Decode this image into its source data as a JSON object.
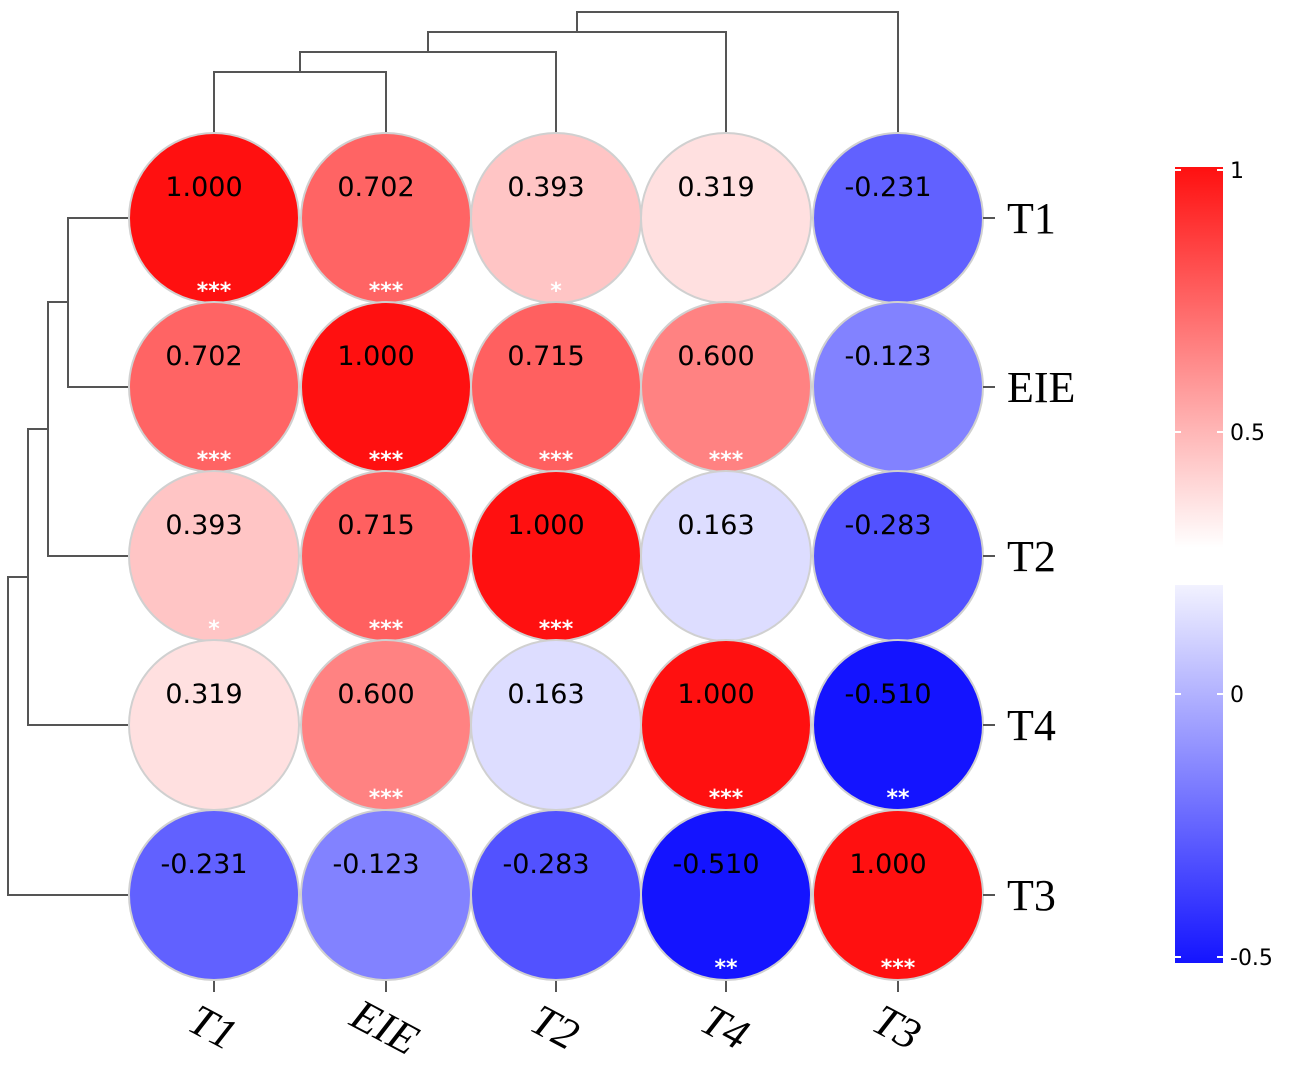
{
  "chart_data": {
    "type": "heatmap",
    "title": "",
    "rows": [
      "T1",
      "EIE",
      "T2",
      "T4",
      "T3"
    ],
    "cols": [
      "T1",
      "EIE",
      "T2",
      "T4",
      "T3"
    ],
    "values": [
      [
        "1.000",
        "0.702",
        "0.393",
        "0.319",
        "-0.231"
      ],
      [
        "0.702",
        "1.000",
        "0.715",
        "0.600",
        "-0.123"
      ],
      [
        "0.393",
        "0.715",
        "1.000",
        "0.163",
        "-0.283"
      ],
      [
        "0.319",
        "0.600",
        "0.163",
        "1.000",
        "-0.510"
      ],
      [
        "-0.231",
        "-0.123",
        "-0.283",
        "-0.510",
        "1.000"
      ]
    ],
    "significance": [
      [
        "***",
        "***",
        "*",
        "",
        ""
      ],
      [
        "***",
        "***",
        "***",
        "***",
        ""
      ],
      [
        "*",
        "***",
        "***",
        "",
        ""
      ],
      [
        "",
        "***",
        "",
        "***",
        "**"
      ],
      [
        "",
        "",
        "",
        "**",
        "***"
      ]
    ],
    "colorbar": {
      "ticks": [
        "1",
        "0.5",
        "0",
        "-0.5"
      ],
      "range": [
        -0.5,
        1
      ],
      "colors": {
        "high": "#ff1010",
        "mid": "#ffffff",
        "low": "#1414ff"
      }
    },
    "dendrogram": "top and left",
    "grid": false,
    "legend": "right"
  }
}
